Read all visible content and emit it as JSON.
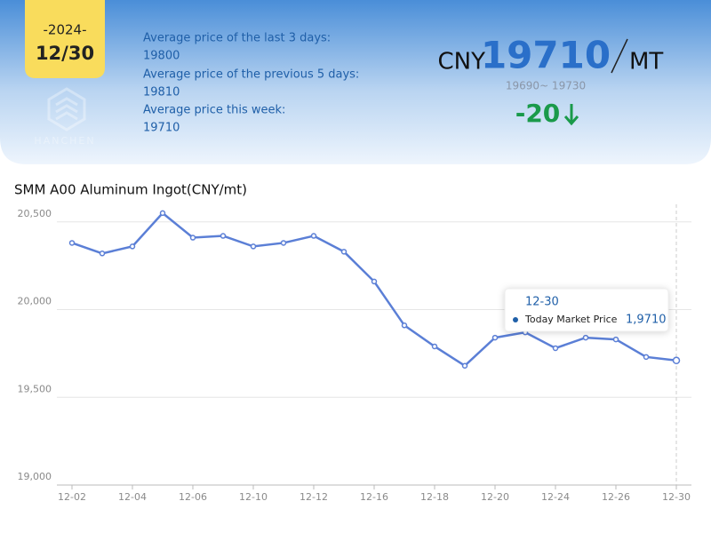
{
  "header": {
    "year": "-2024-",
    "date": "12/30",
    "watermark": "HANCHEN",
    "stats": [
      {
        "label": "Average price of the last 3 days:",
        "value": "19800"
      },
      {
        "label": "Average price of the previous 5 days:",
        "value": "19810"
      },
      {
        "label": "Average price this week:",
        "value": "19710"
      }
    ],
    "currency": "CNY",
    "price": "19710",
    "unit": "MT",
    "range": "19690~ 19730",
    "change": "-20"
  },
  "chart_data": {
    "type": "line",
    "title": "SMM A00 Aluminum Ingot(CNY/mt)",
    "categories": [
      "12-02",
      null,
      "12-04",
      null,
      "12-06",
      null,
      "12-10",
      null,
      "12-12",
      null,
      "12-16",
      null,
      "12-18",
      null,
      "12-20",
      null,
      "12-24",
      null,
      "12-26",
      null,
      "12-30"
    ],
    "series": [
      {
        "name": "Today Market Price",
        "color": "#5b7fd6",
        "values": [
          20380,
          20320,
          20360,
          20550,
          20410,
          20420,
          20360,
          20380,
          20420,
          20330,
          20160,
          19910,
          19790,
          19680,
          19840,
          19870,
          19780,
          19840,
          19830,
          19730,
          19710
        ]
      }
    ],
    "ylim": [
      19000,
      20600
    ],
    "yticks": [
      {
        "value": 19000,
        "label": "19,000"
      },
      {
        "value": 19500,
        "label": "19,500"
      },
      {
        "value": 20000,
        "label": "20,000"
      },
      {
        "value": 20500,
        "label": "20,500"
      }
    ],
    "grid": true,
    "tooltip_value": "1,9710"
  }
}
